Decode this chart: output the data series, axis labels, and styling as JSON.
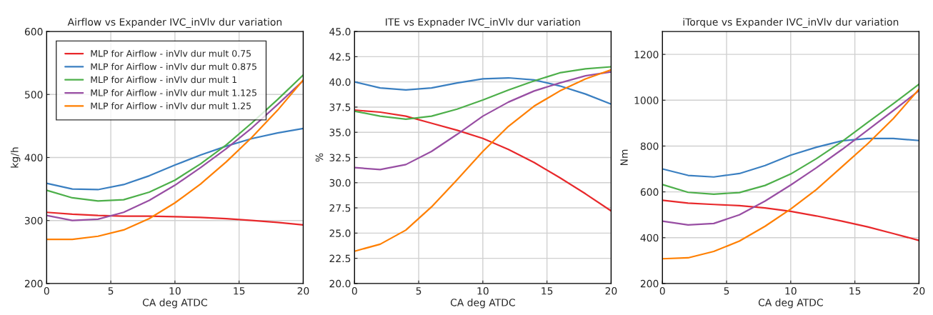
{
  "chart_data": [
    {
      "type": "line",
      "title": "Airflow vs Expander IVC_inVlv dur variation",
      "xlabel": "CA deg ATDC",
      "ylabel": "kg/h",
      "xlim": [
        0,
        20
      ],
      "xticks": [
        0,
        5,
        10,
        15,
        20
      ],
      "ylim": [
        200,
        600
      ],
      "yticks": [
        200,
        300,
        400,
        500,
        600
      ],
      "grid": true,
      "legend": "top left",
      "x": [
        0,
        2,
        4,
        6,
        8,
        10,
        12,
        14,
        16,
        18,
        20
      ],
      "series": [
        {
          "name": "MLP for Airflow - inVlv dur mult 0.75",
          "color": "#e8282b",
          "values": [
            313,
            310,
            308,
            307,
            307,
            306,
            305,
            303,
            300,
            297,
            293
          ]
        },
        {
          "name": "MLP for Airflow - inVlv dur mult 0.875",
          "color": "#3a7fc1",
          "values": [
            359,
            350,
            349,
            357,
            371,
            388,
            404,
            418,
            430,
            439,
            446
          ]
        },
        {
          "name": "MLP for Airflow - inVlv dur mult 1",
          "color": "#4daf4a",
          "values": [
            348,
            336,
            331,
            333,
            345,
            364,
            390,
            420,
            455,
            492,
            531
          ]
        },
        {
          "name": "MLP for Airflow - inVlv dur mult 1.125",
          "color": "#984ea3",
          "values": [
            308,
            300,
            302,
            313,
            332,
            356,
            384,
            414,
            447,
            484,
            522
          ]
        },
        {
          "name": "MLP for Airflow - inVlv dur mult 1.25",
          "color": "#ff7f00",
          "values": [
            270,
            270,
            275,
            285,
            303,
            328,
            358,
            393,
            432,
            475,
            523
          ]
        }
      ]
    },
    {
      "type": "line",
      "title": "ITE vs Expnader IVC_inVlv dur variation",
      "xlabel": "CA deg ATDC",
      "ylabel": "%",
      "xlim": [
        0,
        20
      ],
      "xticks": [
        0,
        5,
        10,
        15,
        20
      ],
      "ylim": [
        20,
        45
      ],
      "yticks": [
        {
          "value": 20,
          "label": "20.0"
        },
        {
          "value": 22.5,
          "label": "22.5"
        },
        {
          "value": 25,
          "label": "25.0"
        },
        {
          "value": 27.5,
          "label": "27.5"
        },
        {
          "value": 30,
          "label": "30.0"
        },
        {
          "value": 32.5,
          "label": "32.5"
        },
        {
          "value": 35,
          "label": "35.0"
        },
        {
          "value": 37.5,
          "label": "37.5"
        },
        {
          "value": 40,
          "label": "40.0"
        },
        {
          "value": 42.5,
          "label": "42.5"
        },
        {
          "value": 45,
          "label": "45.0"
        }
      ],
      "grid": true,
      "x": [
        0,
        2,
        4,
        6,
        8,
        10,
        12,
        14,
        16,
        18,
        20
      ],
      "series": [
        {
          "color": "#e8282b",
          "values": [
            37.2,
            37.0,
            36.6,
            35.9,
            35.2,
            34.4,
            33.3,
            32.0,
            30.5,
            28.9,
            27.2
          ]
        },
        {
          "color": "#3a7fc1",
          "values": [
            40.0,
            39.4,
            39.2,
            39.4,
            39.9,
            40.3,
            40.4,
            40.2,
            39.6,
            38.8,
            37.8
          ]
        },
        {
          "color": "#4daf4a",
          "values": [
            37.1,
            36.6,
            36.3,
            36.6,
            37.3,
            38.2,
            39.2,
            40.1,
            40.9,
            41.3,
            41.5
          ]
        },
        {
          "color": "#984ea3",
          "values": [
            31.5,
            31.3,
            31.8,
            33.1,
            34.8,
            36.6,
            38.0,
            39.1,
            39.9,
            40.6,
            41.0
          ]
        },
        {
          "color": "#ff7f00",
          "values": [
            23.2,
            23.9,
            25.3,
            27.6,
            30.3,
            33.1,
            35.6,
            37.6,
            39.1,
            40.3,
            41.2
          ]
        }
      ]
    },
    {
      "type": "line",
      "title": "iTorque vs Expander IVC_inVlv dur variation",
      "xlabel": "CA deg ATDC",
      "ylabel": "Nm",
      "xlim": [
        0,
        20
      ],
      "xticks": [
        0,
        5,
        10,
        15,
        20
      ],
      "ylim": [
        200,
        1300
      ],
      "yticks": [
        200,
        400,
        600,
        800,
        1000,
        1200
      ],
      "grid": true,
      "x": [
        0,
        2,
        4,
        6,
        8,
        10,
        12,
        14,
        16,
        18,
        20
      ],
      "series": [
        {
          "color": "#e8282b",
          "values": [
            563,
            551,
            545,
            540,
            530,
            515,
            495,
            472,
            447,
            418,
            388
          ]
        },
        {
          "color": "#3a7fc1",
          "values": [
            700,
            672,
            665,
            680,
            715,
            760,
            795,
            823,
            833,
            833,
            824
          ]
        },
        {
          "color": "#4daf4a",
          "values": [
            632,
            598,
            590,
            597,
            628,
            678,
            745,
            820,
            903,
            985,
            1070
          ]
        },
        {
          "color": "#984ea3",
          "values": [
            472,
            456,
            462,
            500,
            560,
            630,
            705,
            785,
            870,
            955,
            1042
          ]
        },
        {
          "color": "#ff7f00",
          "values": [
            308,
            312,
            340,
            385,
            450,
            525,
            610,
            710,
            810,
            920,
            1048
          ]
        }
      ]
    }
  ]
}
